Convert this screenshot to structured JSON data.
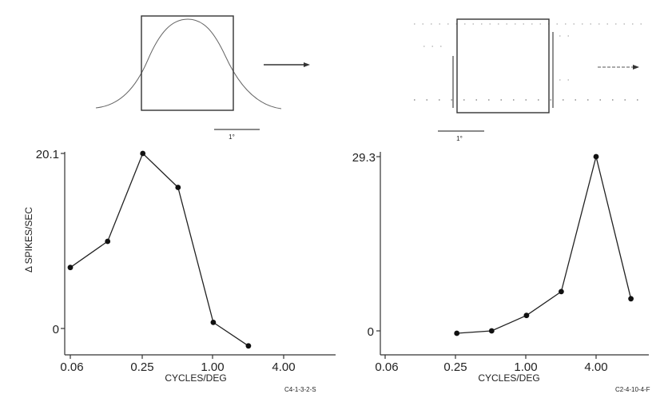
{
  "chart_data": [
    {
      "type": "line",
      "xscale": "log",
      "xlabel": "CYCLES/DEG",
      "ylabel": "Δ SPIKES/SEC",
      "x_tick_labels": [
        "0.06",
        "0.25",
        "1.00",
        "4.00"
      ],
      "x_ticks": [
        0.06,
        0.25,
        1.0,
        4.0
      ],
      "y_tick_labels": [
        "0",
        "20.1"
      ],
      "ylim": [
        -2,
        20.1
      ],
      "x": [
        0.06,
        0.125,
        0.25,
        0.5,
        1.0,
        2.0
      ],
      "values": [
        7.0,
        10.0,
        20.1,
        16.2,
        0.7,
        -2.0
      ],
      "code": "C4-1-3-2-S",
      "stimulus_scale": "1°"
    },
    {
      "type": "line",
      "xscale": "log",
      "xlabel": "CYCLES/DEG",
      "ylabel": "",
      "x_tick_labels": [
        "0.06",
        "0.25",
        "1.00",
        "4.00"
      ],
      "x_ticks": [
        0.06,
        0.25,
        1.0,
        4.0
      ],
      "y_tick_labels": [
        "0",
        "29.3"
      ],
      "ylim": [
        -2,
        29.3
      ],
      "x": [
        0.25,
        0.5,
        1.0,
        2.0,
        4.0,
        8.0
      ],
      "values": [
        -0.4,
        0.0,
        2.6,
        6.6,
        29.3,
        5.4
      ],
      "code": "C2-4-10-4-F",
      "stimulus_scale": "1°"
    }
  ]
}
